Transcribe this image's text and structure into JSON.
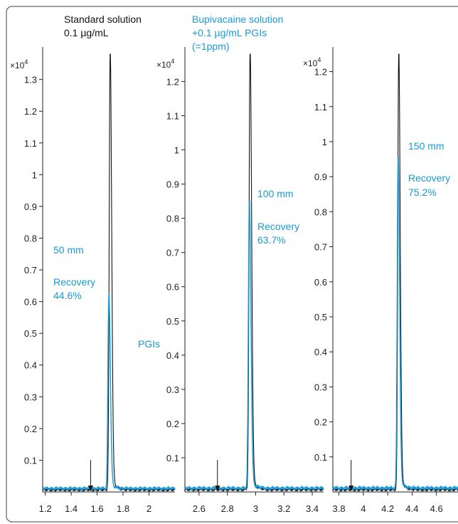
{
  "legend": {
    "standard": {
      "line1": "Standard solution",
      "line2": "0.1 µg/mL",
      "color": "#111111"
    },
    "sample": {
      "line1": "Bupivacaine solution",
      "line2": "+0.1 µg/mL PGIs",
      "line3": "(=1ppm)",
      "color": "#1a9ad6"
    }
  },
  "colors": {
    "standard": "#111111",
    "sample": "#1a9ad6",
    "arrow": "#111111"
  },
  "chart_data": [
    {
      "type": "line",
      "multiplier": "×10",
      "exponent": "4",
      "xlim": [
        1.18,
        2.2
      ],
      "ylim": [
        0,
        1.38
      ],
      "xticks": [
        1.2,
        1.4,
        1.6,
        1.8,
        2
      ],
      "xtick_labels": [
        "1.2",
        "1.4",
        "1.6",
        "1.8",
        "2"
      ],
      "yticks": [
        0.1,
        0.2,
        0.3,
        0.4,
        0.5,
        0.6,
        0.7,
        0.8,
        0.9,
        1,
        1.1,
        1.2,
        1.3
      ],
      "ytick_labels": [
        "0.1",
        "0.2",
        "0.3",
        "0.4",
        "0.5",
        "0.6",
        "0.7",
        "0.8",
        "0.9",
        "1",
        "1.1",
        "1.2",
        "1.3"
      ],
      "series": [
        {
          "key": "standard",
          "retention_time": 1.7,
          "peak_height": 1.38
        },
        {
          "key": "sample",
          "retention_time": 1.69,
          "peak_height": 0.61
        }
      ],
      "arrow_at": 1.55,
      "annotations": {
        "length": "50 mm",
        "recovery_label": "Recovery",
        "recovery_value": "44.6%",
        "pgi_label": "PGIs"
      }
    },
    {
      "type": "line",
      "multiplier": "×10",
      "exponent": "4",
      "xlim": [
        2.5,
        3.48
      ],
      "ylim": [
        0,
        1.28
      ],
      "xticks": [
        2.6,
        2.8,
        3,
        3.2,
        3.4
      ],
      "xtick_labels": [
        "2.6",
        "2.8",
        "3",
        "3.2",
        "3.4"
      ],
      "yticks": [
        0.1,
        0.2,
        0.3,
        0.4,
        0.5,
        0.6,
        0.7,
        0.8,
        0.9,
        1,
        1.1,
        1.2
      ],
      "ytick_labels": [
        "0.1",
        "0.2",
        "0.3",
        "0.4",
        "0.5",
        "0.6",
        "0.7",
        "0.8",
        "0.9",
        "1",
        "1.1",
        "1.2"
      ],
      "series": [
        {
          "key": "standard",
          "retention_time": 2.96,
          "peak_height": 1.28
        },
        {
          "key": "sample",
          "retention_time": 2.955,
          "peak_height": 0.83
        }
      ],
      "arrow_at": 2.73,
      "annotations": {
        "length": "100 mm",
        "recovery_label": "Recovery",
        "recovery_value": "63.7%",
        "pgi_label": ""
      }
    },
    {
      "type": "line",
      "multiplier": "×10",
      "exponent": "4",
      "xlim": [
        3.75,
        4.8
      ],
      "ylim": [
        0,
        1.25
      ],
      "xticks": [
        3.8,
        4,
        4.2,
        4.4,
        4.6
      ],
      "xtick_labels": [
        "3.8",
        "4",
        "4.2",
        "4.4",
        "4.6"
      ],
      "yticks": [
        0.1,
        0.2,
        0.3,
        0.4,
        0.5,
        0.6,
        0.7,
        0.8,
        0.9,
        1,
        1.1,
        1.2
      ],
      "ytick_labels": [
        "0.1",
        "0.2",
        "0.3",
        "0.4",
        "0.5",
        "0.6",
        "0.7",
        "0.8",
        "0.9",
        "1",
        "1.1",
        "1.2"
      ],
      "series": [
        {
          "key": "standard",
          "retention_time": 4.29,
          "peak_height": 1.25
        },
        {
          "key": "sample",
          "retention_time": 4.285,
          "peak_height": 0.94
        }
      ],
      "arrow_at": 3.9,
      "annotations": {
        "length": "150 mm",
        "recovery_label": "Recovery",
        "recovery_value": "75.2%",
        "pgi_label": ""
      }
    }
  ]
}
